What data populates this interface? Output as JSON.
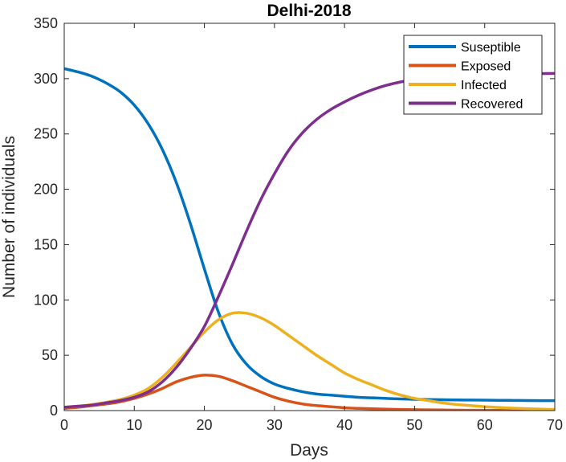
{
  "chart_data": {
    "type": "line",
    "title": "Delhi-2018",
    "xlabel": "Days",
    "ylabel": "Number of individuals",
    "xlim": [
      0,
      70
    ],
    "ylim": [
      0,
      350
    ],
    "xticks": [
      0,
      10,
      20,
      30,
      40,
      50,
      60,
      70
    ],
    "yticks": [
      0,
      50,
      100,
      150,
      200,
      250,
      300,
      350
    ],
    "grid": false,
    "legend_position": "top-right",
    "x": [
      0,
      2,
      4,
      6,
      8,
      10,
      12,
      14,
      16,
      18,
      20,
      22,
      24,
      26,
      28,
      30,
      32,
      34,
      36,
      38,
      40,
      42,
      44,
      46,
      48,
      50,
      52,
      54,
      56,
      58,
      60,
      62,
      64,
      66,
      68,
      70
    ],
    "series": [
      {
        "name": "Suseptible",
        "color": "#0072BD",
        "values": [
          309,
          306,
          302,
          296,
          288,
          276,
          259,
          236,
          206,
          169,
          128,
          89,
          60,
          42,
          31,
          24,
          20,
          17,
          15,
          14,
          13,
          12,
          11.5,
          11,
          10.5,
          10.2,
          10,
          9.8,
          9.6,
          9.5,
          9.4,
          9.3,
          9.2,
          9.1,
          9,
          9
        ]
      },
      {
        "name": "Exposed",
        "color": "#D95319",
        "values": [
          2,
          3,
          4.5,
          6,
          8,
          11,
          15,
          20,
          26,
          30,
          32,
          31,
          27,
          22,
          17,
          12,
          8.5,
          6,
          4.5,
          3.5,
          2.5,
          2,
          1.6,
          1.3,
          1,
          0.8,
          0.6,
          0.5,
          0.4,
          0.3,
          0.25,
          0.2,
          0.15,
          0.1,
          0.1,
          0.1
        ]
      },
      {
        "name": "Infected",
        "color": "#EDB120",
        "values": [
          3,
          4,
          5.5,
          7.5,
          10,
          14,
          20,
          30,
          43,
          57,
          71,
          82,
          88,
          88,
          84,
          77,
          68,
          59,
          50,
          42,
          34,
          28,
          23,
          18,
          14,
          11,
          9,
          7,
          5.5,
          4.5,
          3.5,
          2.8,
          2.2,
          1.7,
          1.3,
          1
        ]
      },
      {
        "name": "Recovered",
        "color": "#7E2F8E",
        "values": [
          3,
          4,
          5,
          7,
          9,
          12,
          17,
          26,
          39,
          56,
          76,
          103,
          132,
          162,
          190,
          214,
          235,
          251,
          263,
          272,
          279,
          285,
          290,
          294,
          297,
          299,
          300.5,
          301.5,
          302.2,
          302.8,
          303.2,
          303.6,
          304,
          304.2,
          304.5,
          304.7
        ]
      }
    ]
  }
}
